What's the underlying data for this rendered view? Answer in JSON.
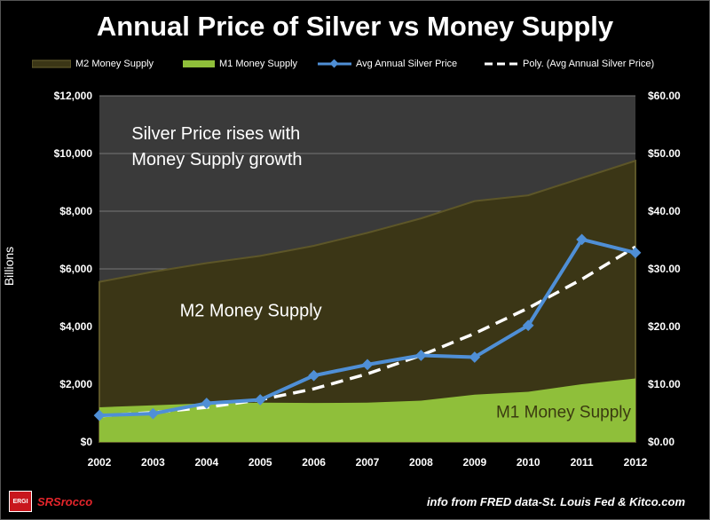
{
  "chart_data": {
    "type": "area",
    "title": "Annual Price of Silver vs Money Supply",
    "x": [
      2002,
      2003,
      2004,
      2005,
      2006,
      2007,
      2008,
      2009,
      2010,
      2011,
      2012
    ],
    "ylabel": "Billions",
    "ylim": [
      0,
      12000
    ],
    "y2lim": [
      0,
      60
    ],
    "yticks": [
      "$0",
      "$2,000",
      "$4,000",
      "$6,000",
      "$8,000",
      "$10,000",
      "$12,000"
    ],
    "y2ticks": [
      "$0.00",
      "$10.00",
      "$20.00",
      "$30.00",
      "$40.00",
      "$50.00",
      "$60.00"
    ],
    "grid": true,
    "legend_position": "top",
    "series": [
      {
        "name": "M2 Money Supply",
        "type": "area",
        "axis": "left",
        "color": "#3b3616",
        "values": [
          5550,
          5900,
          6200,
          6450,
          6800,
          7250,
          7750,
          8350,
          8550,
          9150,
          9750
        ]
      },
      {
        "name": "M1 Money Supply",
        "type": "area",
        "axis": "left",
        "color": "#8fbf3a",
        "values": [
          1200,
          1270,
          1340,
          1360,
          1350,
          1360,
          1430,
          1640,
          1740,
          2000,
          2200
        ]
      },
      {
        "name": "Avg Annual Silver Price",
        "type": "line",
        "axis": "right",
        "color": "#4f8fd6",
        "values": [
          4.6,
          4.9,
          6.7,
          7.3,
          11.5,
          13.4,
          15.0,
          14.7,
          20.2,
          35.1,
          32.8
        ]
      },
      {
        "name": "Poly. (Avg Annual Silver Price)",
        "type": "trendline",
        "axis": "right",
        "color": "#ffffff",
        "values": [
          4.5,
          5.1,
          6.0,
          7.3,
          9.2,
          11.8,
          15.0,
          18.8,
          23.2,
          28.2,
          33.8
        ]
      }
    ],
    "annotations": [
      {
        "text": "Silver Price rises with",
        "x": 2002.6,
        "y": 10500
      },
      {
        "text": "Money Supply growth",
        "x": 2002.6,
        "y": 9600
      },
      {
        "text": "M2 Money Supply",
        "x": 2003.5,
        "y": 4350
      },
      {
        "text": "M1 Money Supply",
        "x": 2009.4,
        "y": 850
      }
    ]
  },
  "footer": {
    "source": "info from FRED data-St. Louis Fed & Kitco.com",
    "logo_text": "SRSrocco",
    "logo_badge": "ERGI"
  },
  "colors": {
    "plot_bg": "#3a3a3a",
    "grid": "#777777",
    "m2_fill": "#3b3616",
    "m1_fill": "#8fbf3a",
    "silver_line": "#4f8fd6",
    "trend_line": "#ffffff"
  }
}
